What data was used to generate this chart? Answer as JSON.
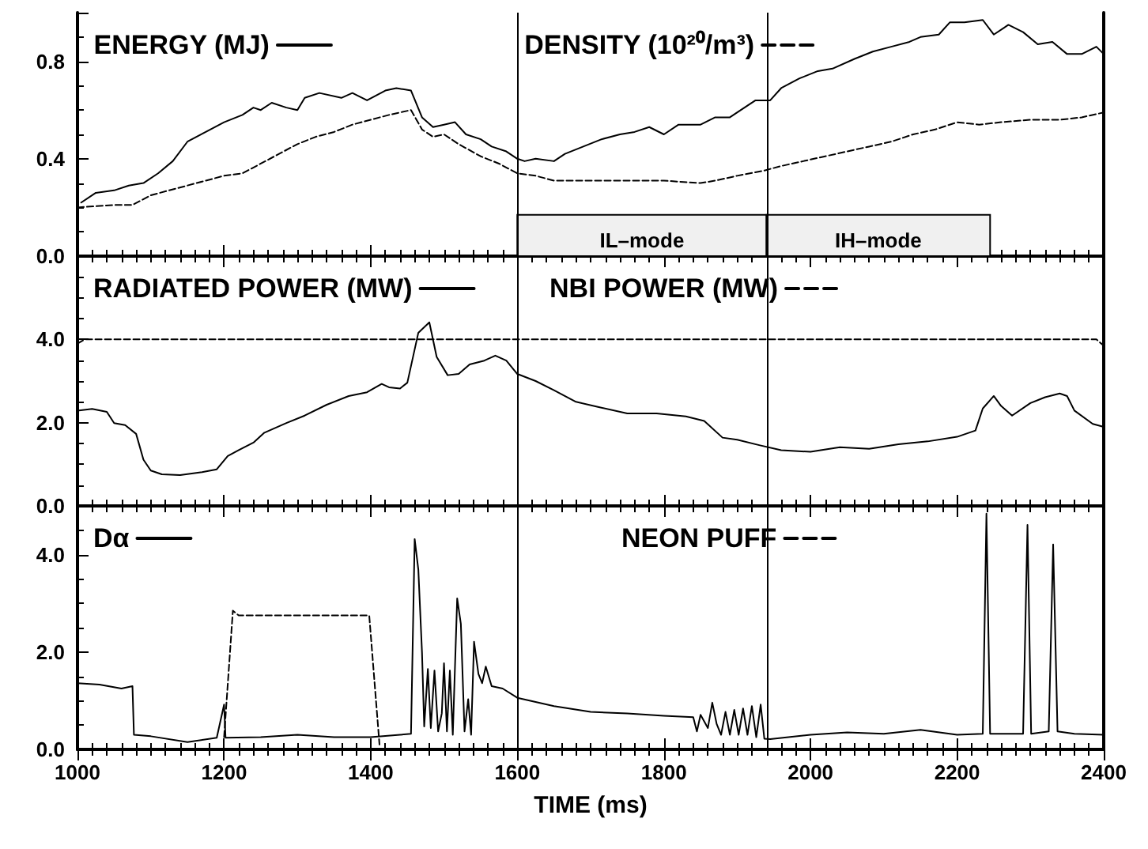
{
  "chart_data": [
    {
      "type": "line",
      "xlim": [
        1000,
        2400
      ],
      "xticks": [
        1000,
        1200,
        1400,
        1600,
        1800,
        2000,
        2200,
        2400
      ],
      "ylim": [
        0,
        1.0
      ],
      "yticks": [
        {
          "value": 0,
          "label": "0.0"
        },
        {
          "value": 0.4,
          "label": "0.4"
        },
        {
          "value": 0.8,
          "label": "0.8"
        }
      ],
      "tick_labels": "y",
      "grid": false,
      "legend": "top",
      "marker": "none",
      "ref_lines": [
        {
          "axis": "x",
          "value": 1600,
          "color": "#000000"
        },
        {
          "axis": "x",
          "value": 1940,
          "color": "#000000"
        }
      ],
      "bands": [
        {
          "axis": "x",
          "from": 1600,
          "to": 1940,
          "label": "IL–mode",
          "color": "#f0f0f0"
        },
        {
          "axis": "x",
          "from": 1940,
          "to": 2245,
          "label": "IH–mode",
          "color": "#f0f0f0"
        }
      ],
      "series": [
        {
          "name": "ENERGY (MJ)",
          "color": "#000000",
          "line_style": "solid",
          "x": [
            1005,
            1025,
            1050,
            1070,
            1090,
            1110,
            1130,
            1150,
            1175,
            1200,
            1225,
            1240,
            1250,
            1265,
            1285,
            1300,
            1310,
            1330,
            1360,
            1375,
            1395,
            1420,
            1435,
            1455,
            1470,
            1485,
            1500,
            1515,
            1530,
            1550,
            1565,
            1585,
            1600,
            1610,
            1625,
            1650,
            1665,
            1690,
            1715,
            1740,
            1760,
            1780,
            1800,
            1820,
            1850,
            1870,
            1890,
            1905,
            1925,
            1945,
            1960,
            1985,
            2010,
            2030,
            2060,
            2085,
            2110,
            2135,
            2150,
            2175,
            2190,
            2210,
            2235,
            2250,
            2270,
            2290,
            2310,
            2330,
            2350,
            2370,
            2390,
            2400
          ],
          "values": [
            0.22,
            0.26,
            0.27,
            0.29,
            0.3,
            0.34,
            0.39,
            0.47,
            0.51,
            0.55,
            0.58,
            0.61,
            0.6,
            0.63,
            0.61,
            0.6,
            0.65,
            0.67,
            0.65,
            0.67,
            0.64,
            0.68,
            0.69,
            0.68,
            0.57,
            0.53,
            0.54,
            0.55,
            0.5,
            0.48,
            0.45,
            0.43,
            0.4,
            0.39,
            0.4,
            0.39,
            0.42,
            0.45,
            0.48,
            0.5,
            0.51,
            0.53,
            0.5,
            0.54,
            0.54,
            0.57,
            0.57,
            0.6,
            0.64,
            0.64,
            0.69,
            0.73,
            0.76,
            0.77,
            0.81,
            0.84,
            0.86,
            0.88,
            0.9,
            0.91,
            0.96,
            0.96,
            0.97,
            0.91,
            0.95,
            0.92,
            0.87,
            0.88,
            0.83,
            0.83,
            0.86,
            0.83
          ]
        },
        {
          "name": "DENSITY (10²⁰/m³)",
          "color": "#000000",
          "line_style": "dashed",
          "x": [
            1000,
            1050,
            1075,
            1100,
            1125,
            1150,
            1175,
            1200,
            1225,
            1250,
            1275,
            1300,
            1325,
            1350,
            1375,
            1400,
            1425,
            1455,
            1470,
            1485,
            1500,
            1520,
            1550,
            1575,
            1600,
            1625,
            1650,
            1700,
            1750,
            1800,
            1850,
            1870,
            1900,
            1935,
            1960,
            1990,
            2020,
            2050,
            2080,
            2110,
            2140,
            2170,
            2200,
            2230,
            2260,
            2300,
            2340,
            2370,
            2400
          ],
          "values": [
            0.2,
            0.21,
            0.21,
            0.25,
            0.27,
            0.29,
            0.31,
            0.33,
            0.34,
            0.38,
            0.42,
            0.46,
            0.49,
            0.51,
            0.54,
            0.56,
            0.58,
            0.6,
            0.52,
            0.49,
            0.5,
            0.46,
            0.41,
            0.38,
            0.34,
            0.33,
            0.31,
            0.31,
            0.31,
            0.31,
            0.3,
            0.31,
            0.33,
            0.35,
            0.37,
            0.39,
            0.41,
            0.43,
            0.45,
            0.47,
            0.5,
            0.52,
            0.55,
            0.54,
            0.55,
            0.56,
            0.56,
            0.57,
            0.59
          ]
        }
      ]
    },
    {
      "type": "line",
      "xlim": [
        1000,
        2400
      ],
      "xticks": [
        1000,
        1200,
        1400,
        1600,
        1800,
        2000,
        2200,
        2400
      ],
      "ylim": [
        0,
        6.0
      ],
      "yticks": [
        {
          "value": 0,
          "label": "0.0"
        },
        {
          "value": 2,
          "label": "2.0"
        },
        {
          "value": 4,
          "label": "4.0"
        }
      ],
      "tick_labels": "y",
      "grid": false,
      "legend": "top",
      "marker": "none",
      "ref_lines": [
        {
          "axis": "x",
          "value": 1600,
          "color": "#000000"
        },
        {
          "axis": "x",
          "value": 1940,
          "color": "#000000"
        }
      ],
      "series": [
        {
          "name": "RADIATED POWER (MW)",
          "color": "#000000",
          "line_style": "solid",
          "x": [
            1000,
            1020,
            1040,
            1050,
            1065,
            1080,
            1090,
            1100,
            1115,
            1140,
            1170,
            1190,
            1205,
            1220,
            1240,
            1255,
            1285,
            1310,
            1340,
            1370,
            1395,
            1415,
            1425,
            1440,
            1450,
            1465,
            1480,
            1490,
            1505,
            1520,
            1535,
            1555,
            1570,
            1585,
            1600,
            1625,
            1650,
            1680,
            1710,
            1750,
            1790,
            1830,
            1855,
            1880,
            1900,
            1930,
            1960,
            2000,
            2040,
            2080,
            2120,
            2160,
            2200,
            2225,
            2235,
            2250,
            2260,
            2275,
            2300,
            2320,
            2340,
            2350,
            2360,
            2385,
            2400
          ],
          "values": [
            2.29,
            2.33,
            2.26,
            1.99,
            1.94,
            1.73,
            1.11,
            0.85,
            0.76,
            0.74,
            0.81,
            0.88,
            1.2,
            1.34,
            1.52,
            1.76,
            1.99,
            2.17,
            2.43,
            2.64,
            2.73,
            2.93,
            2.85,
            2.82,
            2.96,
            4.16,
            4.41,
            3.58,
            3.14,
            3.17,
            3.4,
            3.49,
            3.61,
            3.49,
            3.17,
            3.0,
            2.78,
            2.5,
            2.38,
            2.22,
            2.22,
            2.15,
            2.04,
            1.64,
            1.59,
            1.46,
            1.34,
            1.3,
            1.41,
            1.37,
            1.48,
            1.55,
            1.66,
            1.81,
            2.34,
            2.64,
            2.4,
            2.17,
            2.47,
            2.61,
            2.7,
            2.64,
            2.29,
            1.97,
            1.9
          ]
        },
        {
          "name": "NBI POWER (MW)",
          "color": "#000000",
          "line_style": "dashed",
          "x": [
            1000,
            1010,
            2390,
            2400
          ],
          "values": [
            3.9,
            4.0,
            4.0,
            3.85
          ]
        }
      ]
    },
    {
      "type": "line",
      "xlim": [
        1000,
        2400
      ],
      "xticks": [
        1000,
        1200,
        1400,
        1600,
        1800,
        2000,
        2200,
        2400
      ],
      "ylim": [
        0,
        5.0
      ],
      "yticks": [
        {
          "value": 0,
          "label": "0.0"
        },
        {
          "value": 2,
          "label": "2.0"
        },
        {
          "value": 4,
          "label": "4.0"
        }
      ],
      "xlabel": "TIME (ms)",
      "grid": false,
      "legend": "top",
      "marker": "none",
      "ref_lines": [
        {
          "axis": "x",
          "value": 1600,
          "color": "#000000"
        },
        {
          "axis": "x",
          "value": 1940,
          "color": "#000000"
        }
      ],
      "series": [
        {
          "name": "Dα",
          "color": "#000000",
          "line_style": "solid",
          "x": [
            1000,
            1030,
            1060,
            1075,
            1077,
            1100,
            1150,
            1190,
            1200,
            1202,
            1250,
            1300,
            1350,
            1400,
            1440,
            1455,
            1460,
            1465,
            1470,
            1473,
            1478,
            1482,
            1487,
            1492,
            1497,
            1500,
            1504,
            1508,
            1512,
            1518,
            1523,
            1528,
            1533,
            1537,
            1541,
            1547,
            1552,
            1557,
            1565,
            1580,
            1600,
            1650,
            1700,
            1750,
            1800,
            1840,
            1845,
            1850,
            1860,
            1866,
            1872,
            1878,
            1884,
            1890,
            1896,
            1902,
            1908,
            1914,
            1920,
            1926,
            1932,
            1937,
            1945,
            2000,
            2050,
            2100,
            2150,
            2200,
            2235,
            2240,
            2245,
            2290,
            2296,
            2301,
            2325,
            2331,
            2337,
            2360,
            2400
          ],
          "values": [
            1.36,
            1.33,
            1.25,
            1.3,
            0.3,
            0.27,
            0.15,
            0.24,
            0.92,
            0.24,
            0.25,
            0.3,
            0.25,
            0.25,
            0.3,
            0.32,
            4.32,
            3.69,
            1.99,
            0.47,
            1.65,
            0.44,
            1.62,
            0.37,
            0.74,
            1.77,
            0.37,
            1.62,
            0.3,
            3.1,
            2.58,
            0.37,
            1.03,
            0.3,
            2.21,
            1.55,
            1.36,
            1.7,
            1.3,
            1.25,
            1.06,
            0.89,
            0.77,
            0.74,
            0.69,
            0.66,
            0.37,
            0.71,
            0.44,
            0.96,
            0.52,
            0.3,
            0.77,
            0.3,
            0.81,
            0.3,
            0.84,
            0.3,
            0.89,
            0.25,
            0.92,
            0.22,
            0.21,
            0.3,
            0.35,
            0.32,
            0.4,
            0.3,
            0.32,
            4.84,
            0.32,
            0.32,
            4.61,
            0.32,
            0.37,
            4.21,
            0.37,
            0.32,
            0.3
          ]
        },
        {
          "name": "NEON PUFF",
          "color": "#000000",
          "line_style": "dashed",
          "x": [
            1200,
            1212,
            1220,
            1398,
            1412
          ],
          "values": [
            0.25,
            2.85,
            2.75,
            2.75,
            0.1
          ]
        }
      ]
    }
  ]
}
